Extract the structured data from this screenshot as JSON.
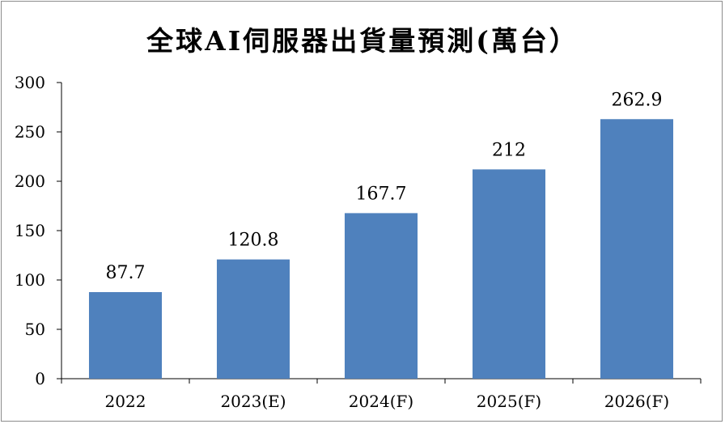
{
  "chart_data": {
    "type": "bar",
    "title": "全球AI伺服器出貨量預測(萬台）",
    "xlabel": "",
    "ylabel": "",
    "categories": [
      "2022",
      "2023(E)",
      "2024(F)",
      "2025(F)",
      "2026(F)"
    ],
    "values": [
      87.7,
      120.8,
      167.7,
      212,
      262.9
    ],
    "data_labels": [
      "87.7",
      "120.8",
      "167.7",
      "212",
      "262.9"
    ],
    "ylim": [
      0,
      300
    ],
    "yticks": [
      0,
      50,
      100,
      150,
      200,
      250,
      300
    ],
    "bar_color": "#4f81bd",
    "axis_color": "#000000",
    "grid": false,
    "legend": "none"
  }
}
